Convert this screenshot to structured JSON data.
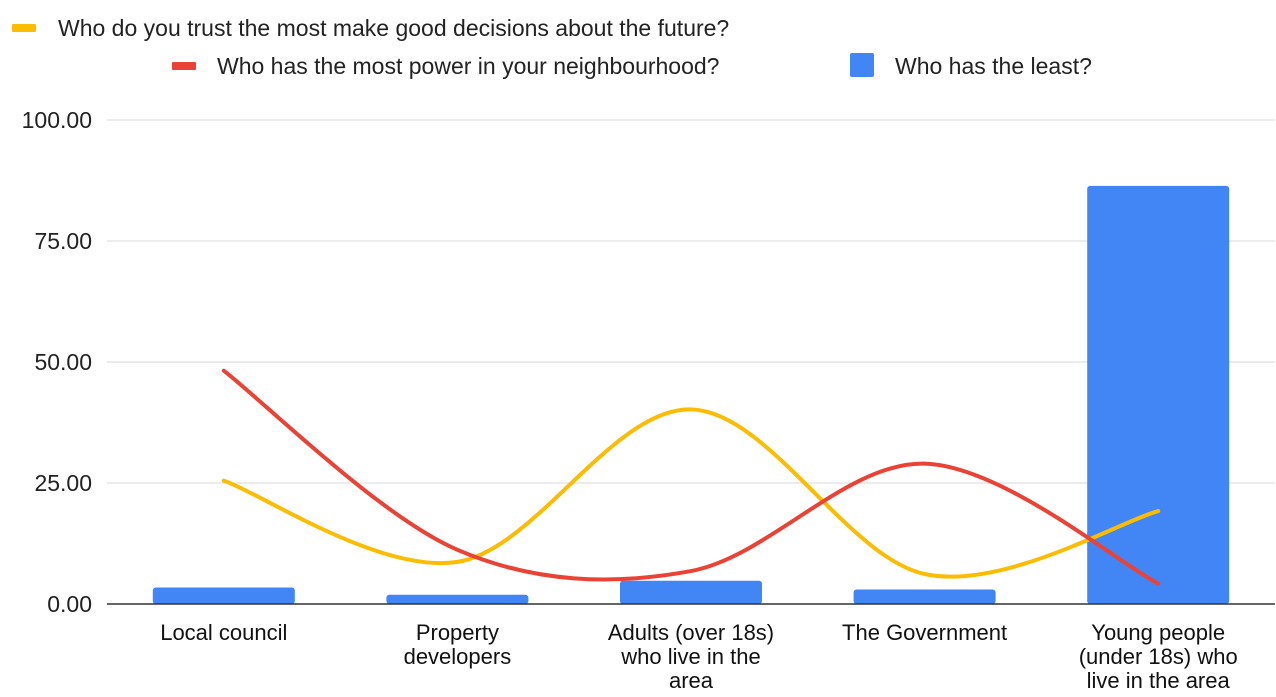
{
  "chart_data": {
    "type": "bar",
    "categories": [
      "Local council",
      "Property developers",
      "Adults (over 18s) who live in the area",
      "The Government",
      "Young people (under 18s) who live in the area"
    ],
    "category_lines": [
      [
        "Local council"
      ],
      [
        "Property",
        "developers"
      ],
      [
        "Adults (over 18s)",
        "who live in the",
        "area"
      ],
      [
        "The Government"
      ],
      [
        "Young people",
        "(under 18s) who",
        "live in the area"
      ]
    ],
    "series": [
      {
        "name": "Who do you trust the most make good decisions about the future?",
        "type": "line",
        "smooth": true,
        "color": "#FBBC04",
        "values": [
          25.5,
          8.7,
          40.2,
          6.2,
          19.2
        ]
      },
      {
        "name": "Who has the most power in your neighbourhood?",
        "type": "line",
        "smooth": true,
        "color": "#EA4335",
        "values": [
          48.2,
          11.2,
          6.8,
          29.0,
          4.2
        ]
      },
      {
        "name": "Who has the least?",
        "type": "bar",
        "color": "#4285F4",
        "values": [
          3.4,
          1.9,
          4.8,
          3.0,
          86.4
        ]
      }
    ],
    "y_ticks": [
      "0.00",
      "25.00",
      "50.00",
      "75.00",
      "100.00"
    ],
    "ylim": [
      0,
      100
    ],
    "grid": true,
    "legend_position": "top",
    "title": "",
    "xlabel": "",
    "ylabel": ""
  }
}
